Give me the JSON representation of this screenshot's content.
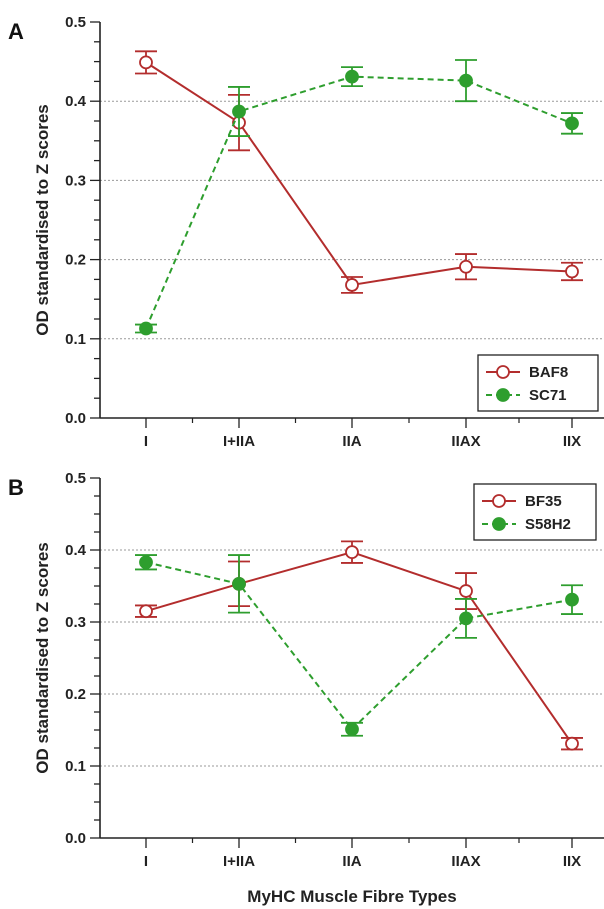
{
  "chart_data": [
    {
      "panel": "A",
      "type": "line",
      "categories": [
        "I",
        "I+IIA",
        "IIA",
        "IIAX",
        "IIX"
      ],
      "ylabel": "OD standardised to Z scores",
      "xlabel": "",
      "ylim": [
        0,
        0.5
      ],
      "yticks": [
        "0.0",
        "0.1",
        "0.2",
        "0.3",
        "0.4",
        "0.5"
      ],
      "gridlines": [
        0.1,
        0.2,
        0.3,
        0.4
      ],
      "legend_position": "bottom-right",
      "series": [
        {
          "name": "BAF8",
          "color": "#b32d2d",
          "style": "solid",
          "marker": "open-circle",
          "values": [
            0.449,
            0.373,
            0.168,
            0.191,
            0.185
          ],
          "errors": [
            0.014,
            0.035,
            0.01,
            0.016,
            0.011
          ]
        },
        {
          "name": "SC71",
          "color": "#2e9e2e",
          "style": "dashed",
          "marker": "filled-circle",
          "values": [
            0.113,
            0.387,
            0.431,
            0.426,
            0.372
          ],
          "errors": [
            0.005,
            0.031,
            0.012,
            0.026,
            0.013
          ]
        }
      ]
    },
    {
      "panel": "B",
      "type": "line",
      "categories": [
        "I",
        "I+IIA",
        "IIA",
        "IIAX",
        "IIX"
      ],
      "ylabel": "OD standardised to Z scores",
      "xlabel": "MyHC Muscle Fibre Types",
      "ylim": [
        0,
        0.5
      ],
      "yticks": [
        "0.0",
        "0.1",
        "0.2",
        "0.3",
        "0.4",
        "0.5"
      ],
      "gridlines": [
        0.1,
        0.2,
        0.3,
        0.4
      ],
      "legend_position": "top-right",
      "series": [
        {
          "name": "BF35",
          "color": "#b32d2d",
          "style": "solid",
          "marker": "open-circle",
          "values": [
            0.315,
            0.353,
            0.397,
            0.343,
            0.131
          ],
          "errors": [
            0.008,
            0.031,
            0.015,
            0.025,
            0.008
          ]
        },
        {
          "name": "S58H2",
          "color": "#2e9e2e",
          "style": "dashed",
          "marker": "filled-circle",
          "values": [
            0.383,
            0.353,
            0.151,
            0.305,
            0.331
          ],
          "errors": [
            0.01,
            0.04,
            0.009,
            0.027,
            0.02
          ]
        }
      ]
    }
  ]
}
